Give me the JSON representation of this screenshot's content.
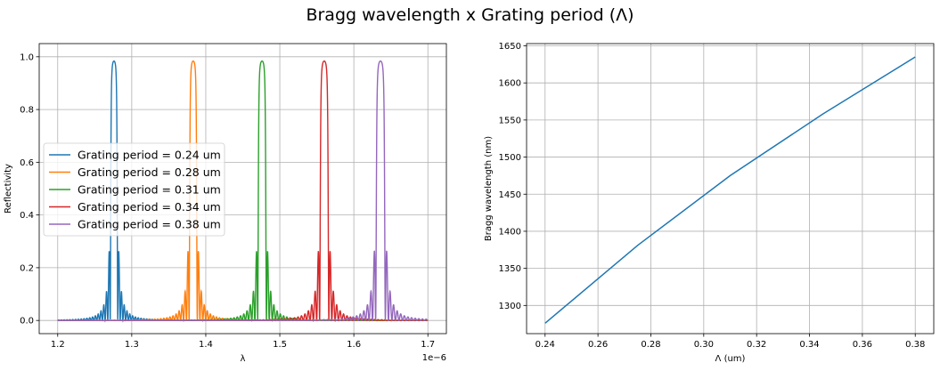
{
  "suptitle": "Bragg wavelength x Grating period (Λ)",
  "chart_data": [
    {
      "type": "line",
      "xlabel": "λ",
      "ylabel": "Reflectivity",
      "x_offset_text": "1e−6",
      "xlim": [
        1.175,
        1.725
      ],
      "ylim": [
        -0.05,
        1.05
      ],
      "xticks": [
        1.2,
        1.3,
        1.4,
        1.5,
        1.6,
        1.7
      ],
      "yticks": [
        0.0,
        0.2,
        0.4,
        0.6,
        0.8,
        1.0
      ],
      "grid": true,
      "legend_position": "center-left",
      "series": [
        {
          "name": "Grating period =  0.24 um",
          "color": "#1f77b4",
          "center": 1.276,
          "peak": 1.0
        },
        {
          "name": "Grating period =  0.28 um",
          "color": "#ff7f0e",
          "center": 1.383,
          "peak": 1.0
        },
        {
          "name": "Grating period =  0.31 um",
          "color": "#2ca02c",
          "center": 1.476,
          "peak": 1.0
        },
        {
          "name": "Grating period =  0.34 um",
          "color": "#d62728",
          "center": 1.56,
          "peak": 1.0
        },
        {
          "name": "Grating period =  0.38 um",
          "color": "#9467bd",
          "center": 1.636,
          "peak": 1.0
        }
      ]
    },
    {
      "type": "line",
      "xlabel": "Λ (um)",
      "ylabel": "Bragg wavelength (nm)",
      "xlim": [
        0.233,
        0.387
      ],
      "ylim": [
        1262,
        1653
      ],
      "xticks": [
        0.24,
        0.26,
        0.28,
        0.3,
        0.32,
        0.34,
        0.36,
        0.38
      ],
      "xtick_labels": [
        "0.24",
        "0.26",
        "0.28",
        "0.30",
        "0.32",
        "0.34",
        "0.36",
        "0.38"
      ],
      "yticks": [
        1300,
        1350,
        1400,
        1450,
        1500,
        1550,
        1600,
        1650
      ],
      "grid": true,
      "x": [
        0.24,
        0.275,
        0.31,
        0.345,
        0.38
      ],
      "y": [
        1276,
        1381,
        1475,
        1558,
        1635
      ],
      "color": "#1f77b4"
    }
  ]
}
